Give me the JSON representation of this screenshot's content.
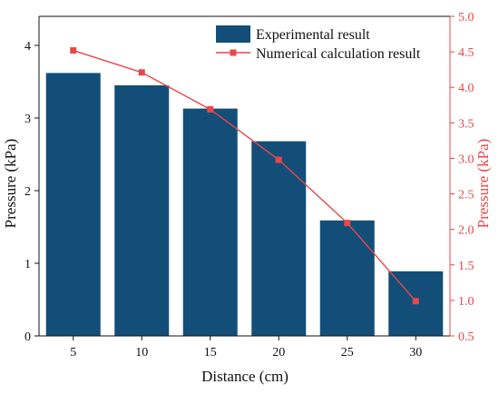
{
  "chart_data": {
    "type": "bar",
    "xlabel": "Distance (cm)",
    "ylabel_left": "Pressure (kPa)",
    "ylabel_right": "Pressure (kPa)",
    "categories": [
      "5",
      "10",
      "15",
      "20",
      "25",
      "30"
    ],
    "x_tick_labels": [
      "5",
      "10",
      "15",
      "20",
      "25",
      "30"
    ],
    "y_left": {
      "range": [
        0,
        4.4
      ],
      "ticks": [
        "0",
        "1",
        "2",
        "3",
        "4"
      ]
    },
    "y_right": {
      "range": [
        0.5,
        5.0
      ],
      "ticks": [
        "0.5",
        "1.0",
        "1.5",
        "2.0",
        "2.5",
        "3.0",
        "3.5",
        "4.0",
        "4.5",
        "5.0"
      ]
    },
    "series": [
      {
        "name": "Experimental result",
        "type": "bar",
        "axis": "left",
        "color": "#124e78",
        "values": [
          3.62,
          3.45,
          3.13,
          2.68,
          1.59,
          0.89
        ]
      },
      {
        "name": "Numerical calculation result",
        "type": "line",
        "axis": "right",
        "marker": "square",
        "color": "#e8474b",
        "values": [
          4.52,
          4.21,
          3.69,
          2.98,
          2.09,
          0.99
        ]
      }
    ],
    "legend_position": "top-right",
    "right_axis_color": "#e8474b",
    "grid": false
  }
}
